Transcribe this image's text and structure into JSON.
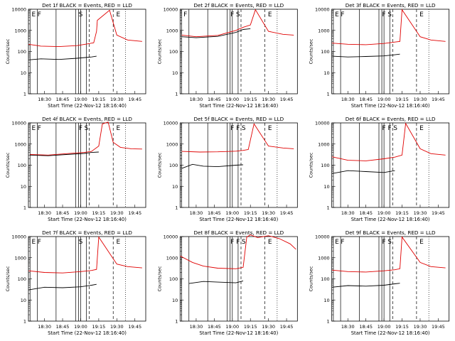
{
  "chart_data": [
    {
      "type": "line",
      "title": "Det 1f BLACK = Events, RED = LLD",
      "xlabel": "Start Time (22-Nov-12 18:16:40)",
      "ylabel": "Counts/sec",
      "ylim": [
        1,
        10000
      ],
      "yscale": "log",
      "x_tick_labels": [
        "18:30",
        "18:45",
        "19:00",
        "19:15",
        "19:30",
        "19:45"
      ],
      "y_tick_labels": [
        "1",
        "10",
        "100",
        "1000",
        "10000"
      ],
      "markers": [
        {
          "label": "E",
          "pos": "start"
        },
        {
          "label": "F",
          "pos": "start"
        },
        {
          "label": "S",
          "pos": "mid"
        },
        {
          "label": "E",
          "pos": "end"
        }
      ],
      "series": [
        {
          "color": "#e00000",
          "x": [
            18.28,
            18.45,
            18.7,
            18.95,
            19.1,
            19.18,
            19.22,
            19.23,
            19.4,
            19.5,
            19.65,
            19.85
          ],
          "y": [
            220,
            180,
            170,
            190,
            230,
            260,
            900,
            3000,
            9000,
            600,
            350,
            300
          ]
        },
        {
          "color": "#000000",
          "x": [
            18.28,
            18.45,
            18.7,
            18.95,
            19.15,
            19.22
          ],
          "y": [
            40,
            45,
            42,
            48,
            55,
            60
          ]
        }
      ]
    },
    {
      "type": "line",
      "title": "Det 2f BLACK = Events, RED = LLD",
      "xlabel": "Start Time (22-Nov-12 18:16:40)",
      "ylabel": "Counts/sec",
      "ylim": [
        1,
        10000
      ],
      "yscale": "log",
      "x_tick_labels": [
        "18:30",
        "18:45",
        "19:00",
        "19:15",
        "19:30",
        "19:45"
      ],
      "y_tick_labels": [
        "1",
        "10",
        "100",
        "1000",
        "10000"
      ],
      "markers": [
        {
          "label": "F",
          "pos": "start"
        },
        {
          "label": "F",
          "pos": "mid"
        },
        {
          "label": "S",
          "pos": "mid"
        },
        {
          "label": "E",
          "pos": "end"
        }
      ],
      "series": [
        {
          "color": "#e00000",
          "x": [
            18.3,
            18.5,
            18.8,
            19.05,
            19.15,
            19.25,
            19.32,
            19.5,
            19.7,
            19.85
          ],
          "y": [
            600,
            500,
            580,
            1000,
            1400,
            1800,
            9500,
            900,
            650,
            600
          ]
        },
        {
          "color": "#000000",
          "x": [
            18.3,
            18.5,
            18.8,
            19.05,
            19.15,
            19.25
          ],
          "y": [
            500,
            450,
            520,
            800,
            1100,
            1200
          ]
        }
      ]
    },
    {
      "type": "line",
      "title": "Det 3f BLACK = Events, RED = LLD",
      "xlabel": "Start Time (22-Nov-12 18:16:40)",
      "ylabel": "Counts/sec",
      "ylim": [
        1,
        10000
      ],
      "yscale": "log",
      "x_tick_labels": [
        "18:30",
        "18:45",
        "19:00",
        "19:15",
        "19:30",
        "19:45"
      ],
      "y_tick_labels": [
        "1",
        "10",
        "100",
        "1000",
        "10000"
      ],
      "markers": [
        {
          "label": "E",
          "pos": "start"
        },
        {
          "label": "F",
          "pos": "start"
        },
        {
          "label": "F",
          "pos": "mid"
        },
        {
          "label": "S",
          "pos": "mid"
        },
        {
          "label": "E",
          "pos": "end"
        }
      ],
      "series": [
        {
          "color": "#e00000",
          "x": [
            18.28,
            18.5,
            18.75,
            19.0,
            19.15,
            19.22,
            19.25,
            19.5,
            19.65,
            19.85
          ],
          "y": [
            250,
            220,
            210,
            240,
            280,
            300,
            9500,
            500,
            350,
            300
          ]
        },
        {
          "color": "#000000",
          "x": [
            18.28,
            18.5,
            18.75,
            19.0,
            19.15,
            19.22
          ],
          "y": [
            60,
            55,
            58,
            62,
            70,
            75
          ]
        }
      ]
    },
    {
      "type": "line",
      "title": "Det 4f BLACK = Events, RED = LLD",
      "xlabel": "Start Time (22-Nov-12 18:16:40)",
      "ylabel": "Counts/sec",
      "ylim": [
        1,
        10000
      ],
      "yscale": "log",
      "x_tick_labels": [
        "18:30",
        "18:45",
        "19:00",
        "19:15",
        "19:30",
        "19:45"
      ],
      "y_tick_labels": [
        "1",
        "10",
        "100",
        "1000",
        "10000"
      ],
      "markers": [
        {
          "label": "E",
          "pos": "start"
        },
        {
          "label": "F",
          "pos": "start"
        },
        {
          "label": "F",
          "pos": "mid"
        },
        {
          "label": "S",
          "pos": "mid"
        },
        {
          "label": "E",
          "pos": "end"
        }
      ],
      "series": [
        {
          "color": "#e00000",
          "x": [
            18.3,
            18.55,
            18.8,
            19.05,
            19.15,
            19.25,
            19.3,
            19.38,
            19.45,
            19.55,
            19.7,
            19.85
          ],
          "y": [
            320,
            300,
            350,
            400,
            450,
            800,
            9000,
            11000,
            1200,
            700,
            600,
            580
          ]
        },
        {
          "color": "#000000",
          "x": [
            18.3,
            18.55,
            18.8,
            19.05,
            19.15,
            19.25
          ],
          "y": [
            300,
            280,
            320,
            360,
            400,
            420
          ]
        }
      ]
    },
    {
      "type": "line",
      "title": "Det 5f BLACK = Events, RED = LLD",
      "xlabel": "Start Time (22-Nov-12 18:16:40)",
      "ylabel": "Counts/sec",
      "ylim": [
        1,
        10000
      ],
      "yscale": "log",
      "x_tick_labels": [
        "18:30",
        "18:45",
        "19:00",
        "19:15",
        "19:30",
        "19:45"
      ],
      "y_tick_labels": [
        "1",
        "10",
        "100",
        "1000",
        "10000"
      ],
      "markers": [
        {
          "label": "F",
          "pos": "mid"
        },
        {
          "label": "F",
          "pos": "mid"
        },
        {
          "label": "S",
          "pos": "mid"
        },
        {
          "label": "E",
          "pos": "end"
        }
      ],
      "series": [
        {
          "color": "#e00000",
          "x": [
            18.3,
            18.55,
            18.8,
            19.05,
            19.15,
            19.22,
            19.3,
            19.5,
            19.7,
            19.85
          ],
          "y": [
            450,
            420,
            430,
            460,
            500,
            550,
            9000,
            800,
            650,
            600
          ]
        },
        {
          "color": "#000000",
          "x": [
            18.3,
            18.45,
            18.6,
            18.8,
            19.05,
            19.15
          ],
          "y": [
            70,
            110,
            90,
            85,
            100,
            105
          ]
        }
      ]
    },
    {
      "type": "line",
      "title": "Det 6f BLACK = Events, RED = LLD",
      "xlabel": "Start Time (22-Nov-12 18:16:40)",
      "ylabel": "Counts/sec",
      "ylim": [
        1,
        10000
      ],
      "yscale": "log",
      "x_tick_labels": [
        "18:30",
        "18:45",
        "19:00",
        "19:15",
        "19:30",
        "19:45"
      ],
      "y_tick_labels": [
        "1",
        "10",
        "100",
        "1000",
        "10000"
      ],
      "markers": [
        {
          "label": "F",
          "pos": "mid"
        },
        {
          "label": "F",
          "pos": "mid"
        },
        {
          "label": "S",
          "pos": "mid"
        },
        {
          "label": "E",
          "pos": "end"
        }
      ],
      "series": [
        {
          "color": "#e00000",
          "x": [
            18.28,
            18.5,
            18.75,
            19.0,
            19.15,
            19.25,
            19.3,
            19.5,
            19.65,
            19.85
          ],
          "y": [
            250,
            170,
            160,
            200,
            240,
            300,
            9500,
            600,
            350,
            300
          ]
        },
        {
          "color": "#000000",
          "x": [
            18.28,
            18.5,
            18.75,
            19.0,
            19.15
          ],
          "y": [
            40,
            55,
            50,
            45,
            55
          ]
        }
      ]
    },
    {
      "type": "line",
      "title": "Det 7f BLACK = Events, RED = LLD",
      "xlabel": "Start Time (22-Nov-12 18:16:40)",
      "ylabel": "Counts/sec",
      "ylim": [
        1,
        10000
      ],
      "yscale": "log",
      "x_tick_labels": [
        "18:30",
        "18:45",
        "19:00",
        "19:15",
        "19:30",
        "19:45"
      ],
      "y_tick_labels": [
        "1",
        "10",
        "100",
        "1000",
        "10000"
      ],
      "markers": [
        {
          "label": "E",
          "pos": "start"
        },
        {
          "label": "F",
          "pos": "start"
        },
        {
          "label": "S",
          "pos": "mid"
        },
        {
          "label": "E",
          "pos": "end"
        }
      ],
      "series": [
        {
          "color": "#e00000",
          "x": [
            18.28,
            18.5,
            18.75,
            19.0,
            19.15,
            19.22,
            19.25,
            19.5,
            19.65,
            19.85
          ],
          "y": [
            240,
            200,
            190,
            220,
            250,
            280,
            9500,
            500,
            380,
            330
          ]
        },
        {
          "color": "#000000",
          "x": [
            18.28,
            18.5,
            18.75,
            19.0,
            19.15,
            19.22
          ],
          "y": [
            30,
            40,
            38,
            42,
            50,
            55
          ]
        }
      ]
    },
    {
      "type": "line",
      "title": "Det 8f BLACK = Events, RED = LLD",
      "xlabel": "Start Time (22-Nov-12 18:16:40)",
      "ylabel": "Counts/sec",
      "ylim": [
        1,
        10000
      ],
      "yscale": "log",
      "x_tick_labels": [
        "18:30",
        "18:45",
        "19:00",
        "19:15",
        "19:30",
        "19:45"
      ],
      "y_tick_labels": [
        "1",
        "10",
        "100",
        "1000",
        "10000"
      ],
      "markers": [
        {
          "label": "F",
          "pos": "mid"
        },
        {
          "label": "F",
          "pos": "mid"
        },
        {
          "label": "S",
          "pos": "mid"
        },
        {
          "label": "E",
          "pos": "end"
        }
      ],
      "series": [
        {
          "color": "#e00000",
          "x": [
            18.28,
            18.45,
            18.6,
            18.8,
            19.05,
            19.15,
            19.2,
            19.25,
            19.35,
            19.5,
            19.65,
            19.8,
            19.88
          ],
          "y": [
            1200,
            600,
            400,
            320,
            300,
            350,
            9500,
            12000,
            9000,
            11000,
            8000,
            4500,
            2500
          ]
        },
        {
          "color": "#000000",
          "x": [
            18.4,
            18.6,
            18.8,
            19.05,
            19.15
          ],
          "y": [
            60,
            75,
            70,
            65,
            80
          ]
        }
      ]
    },
    {
      "type": "line",
      "title": "Det 9f BLACK = Events, RED = LLD",
      "xlabel": "Start Time (22-Nov-12 18:16:40)",
      "ylabel": "Counts/sec",
      "ylim": [
        1,
        10000
      ],
      "yscale": "log",
      "x_tick_labels": [
        "18:30",
        "18:45",
        "19:00",
        "19:15",
        "19:30",
        "19:45"
      ],
      "y_tick_labels": [
        "1",
        "10",
        "100",
        "1000",
        "10000"
      ],
      "markers": [
        {
          "label": "E",
          "pos": "start"
        },
        {
          "label": "F",
          "pos": "start"
        },
        {
          "label": "F",
          "pos": "mid"
        },
        {
          "label": "S",
          "pos": "mid"
        },
        {
          "label": "E",
          "pos": "end"
        }
      ],
      "series": [
        {
          "color": "#e00000",
          "x": [
            18.28,
            18.5,
            18.75,
            19.0,
            19.15,
            19.22,
            19.25,
            19.5,
            19.65,
            19.85
          ],
          "y": [
            260,
            220,
            210,
            240,
            270,
            300,
            9500,
            600,
            380,
            330
          ]
        },
        {
          "color": "#000000",
          "x": [
            18.28,
            18.5,
            18.75,
            19.0,
            19.15,
            19.22
          ],
          "y": [
            40,
            48,
            45,
            50,
            58,
            62
          ]
        }
      ]
    }
  ]
}
